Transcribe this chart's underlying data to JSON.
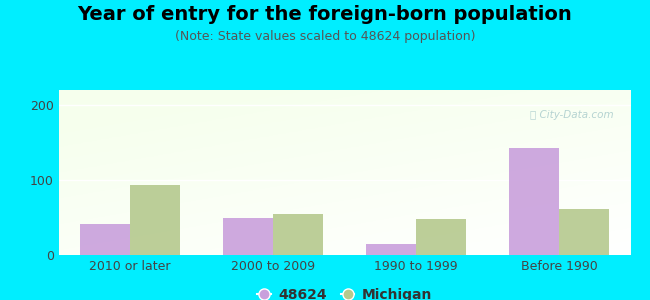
{
  "title": "Year of entry for the foreign-born population",
  "subtitle": "(Note: State values scaled to 48624 population)",
  "categories": [
    "2010 or later",
    "2000 to 2009",
    "1990 to 1999",
    "Before 1990"
  ],
  "values_48624": [
    42,
    50,
    15,
    143
  ],
  "values_michigan": [
    93,
    55,
    48,
    62
  ],
  "color_48624": "#c9a0dc",
  "color_michigan": "#b5c98e",
  "background_outer": "#00eeff",
  "ylim": [
    0,
    220
  ],
  "yticks": [
    0,
    100,
    200
  ],
  "bar_width": 0.35,
  "legend_label_48624": "48624",
  "legend_label_michigan": "Michigan",
  "title_fontsize": 14,
  "subtitle_fontsize": 9,
  "tick_fontsize": 9
}
